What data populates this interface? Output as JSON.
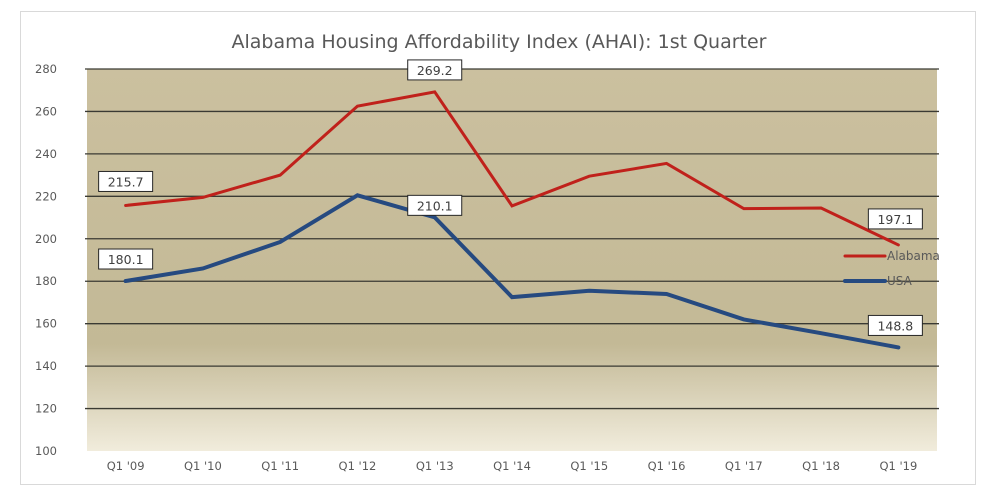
{
  "chart_data": {
    "type": "line",
    "title": "Alabama Housing Affordability Index (AHAI): 1st Quarter",
    "xlabel": "",
    "ylabel": "",
    "categories": [
      "Q1 '09",
      "Q1 '10",
      "Q1 '11",
      "Q1 '12",
      "Q1 '13",
      "Q1 '14",
      "Q1 '15",
      "Q1 '16",
      "Q1 '17",
      "Q1 '18",
      "Q1 '19"
    ],
    "ylim": [
      100,
      280
    ],
    "yticks": [
      100,
      120,
      140,
      160,
      180,
      200,
      220,
      240,
      260,
      280
    ],
    "grid": true,
    "legend_position": "right",
    "series": [
      {
        "name": "Alabama",
        "color": "#c0211b",
        "values": [
          215.7,
          219.5,
          230.0,
          262.5,
          269.2,
          215.5,
          229.5,
          235.5,
          214.2,
          214.5,
          197.1
        ]
      },
      {
        "name": "USA",
        "color": "#264a80",
        "values": [
          180.1,
          186.0,
          198.5,
          220.5,
          210.1,
          172.5,
          175.5,
          174.0,
          162.0,
          155.5,
          148.8
        ]
      }
    ],
    "data_labels": [
      {
        "series": "Alabama",
        "category": "Q1 '09",
        "text": "215.7"
      },
      {
        "series": "Alabama",
        "category": "Q1 '13",
        "text": "269.2"
      },
      {
        "series": "Alabama",
        "category": "Q1 '19",
        "text": "197.1"
      },
      {
        "series": "USA",
        "category": "Q1 '09",
        "text": "180.1"
      },
      {
        "series": "USA",
        "category": "Q1 '13",
        "text": "210.1"
      },
      {
        "series": "USA",
        "category": "Q1 '19",
        "text": "148.8"
      }
    ],
    "plot_background": {
      "top": "#cbc09f",
      "mid": "#c3b996",
      "bottom": "#f1ecdc"
    }
  }
}
